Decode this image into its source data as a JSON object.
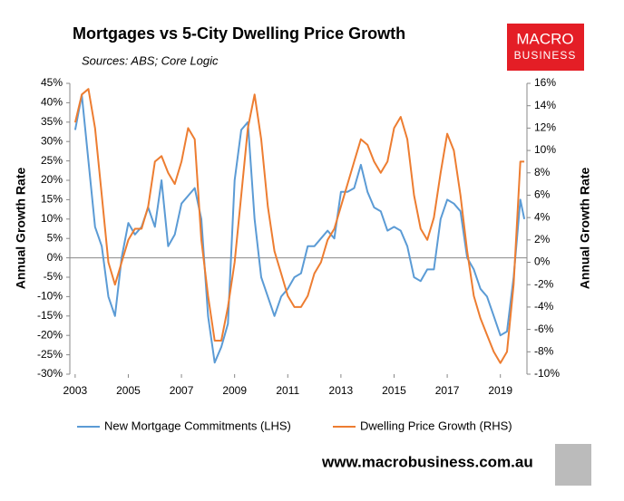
{
  "chart_data": {
    "type": "line",
    "title": "Mortgages vs 5-City Dwelling Price Growth",
    "subtitle": "Sources: ABS; Core Logic",
    "logo": [
      "MACRO",
      "BUSINESS"
    ],
    "footer": "www.macrobusiness.com.au",
    "y_label": "Annual Growth Rate",
    "y2_label": "Annual Growth Rate",
    "x": [
      2003.0,
      2003.25,
      2003.5,
      2003.75,
      2004.0,
      2004.25,
      2004.5,
      2004.75,
      2005.0,
      2005.25,
      2005.5,
      2005.75,
      2006.0,
      2006.25,
      2006.5,
      2006.75,
      2007.0,
      2007.25,
      2007.5,
      2007.75,
      2008.0,
      2008.25,
      2008.5,
      2008.75,
      2009.0,
      2009.25,
      2009.5,
      2009.75,
      2010.0,
      2010.25,
      2010.5,
      2010.75,
      2011.0,
      2011.25,
      2011.5,
      2011.75,
      2012.0,
      2012.25,
      2012.5,
      2012.75,
      2013.0,
      2013.25,
      2013.5,
      2013.75,
      2014.0,
      2014.25,
      2014.5,
      2014.75,
      2015.0,
      2015.25,
      2015.5,
      2015.75,
      2016.0,
      2016.25,
      2016.5,
      2016.75,
      2017.0,
      2017.25,
      2017.5,
      2017.75,
      2018.0,
      2018.25,
      2018.5,
      2018.75,
      2019.0,
      2019.25,
      2019.5,
      2019.75,
      2019.9
    ],
    "series": [
      {
        "name": "New Mortgage Commitments (LHS)",
        "color": "#5b9bd5",
        "axis": "y",
        "values": [
          33,
          42,
          25,
          8,
          3,
          -10,
          -15,
          0,
          9,
          6,
          8,
          13,
          8,
          20,
          3,
          6,
          14,
          16,
          18,
          10,
          -15,
          -27,
          -23,
          -17,
          20,
          33,
          35,
          10,
          -5,
          -10,
          -15,
          -10,
          -8,
          -5,
          -4,
          3,
          3,
          5,
          7,
          5,
          17,
          17,
          18,
          24,
          17,
          13,
          12,
          7,
          8,
          7,
          3,
          -5,
          -6,
          -3,
          -3,
          10,
          15,
          14,
          12,
          0,
          -3,
          -8,
          -10,
          -15,
          -20,
          -19,
          -5,
          15,
          10
        ]
      },
      {
        "name": "Dwelling Price Growth (RHS)",
        "color": "#ed7d31",
        "axis": "y2",
        "values": [
          12.5,
          15,
          15.5,
          12,
          6,
          0,
          -2,
          0,
          2,
          3,
          3,
          5,
          9,
          9.5,
          8,
          7,
          9,
          12,
          11,
          2,
          -3,
          -7,
          -7,
          -4,
          0,
          6,
          12,
          15,
          11,
          5,
          1,
          -1,
          -3,
          -4,
          -4,
          -3,
          -1,
          0,
          2,
          3,
          5,
          7,
          9,
          11,
          10.5,
          9,
          8,
          9,
          12,
          13,
          11,
          6,
          3,
          2,
          4,
          8,
          11.5,
          10,
          6,
          1,
          -3,
          -5,
          -6.5,
          -8,
          -9,
          -8,
          -2,
          9,
          9
        ]
      }
    ],
    "xlim": [
      2002.8,
      2020.0
    ],
    "xticks": [
      2003,
      2005,
      2007,
      2009,
      2011,
      2013,
      2015,
      2017,
      2019
    ],
    "ylim": [
      -30,
      45
    ],
    "yticks": [
      {
        "value": 45,
        "label": "45%"
      },
      {
        "value": 40,
        "label": "40%"
      },
      {
        "value": 35,
        "label": "35%"
      },
      {
        "value": 30,
        "label": "30%"
      },
      {
        "value": 25,
        "label": "25%"
      },
      {
        "value": 20,
        "label": "20%"
      },
      {
        "value": 15,
        "label": "15%"
      },
      {
        "value": 10,
        "label": "10%"
      },
      {
        "value": 5,
        "label": "5%"
      },
      {
        "value": 0,
        "label": "0%"
      },
      {
        "value": -5,
        "label": "-5%"
      },
      {
        "value": -10,
        "label": "-10%"
      },
      {
        "value": -15,
        "label": "-15%"
      },
      {
        "value": -20,
        "label": "-20%"
      },
      {
        "value": -25,
        "label": "-25%"
      },
      {
        "value": -30,
        "label": "-30%"
      }
    ],
    "y2lim": [
      -10,
      16
    ],
    "y2ticks": [
      {
        "value": 16,
        "label": "16%"
      },
      {
        "value": 14,
        "label": "14%"
      },
      {
        "value": 12,
        "label": "12%"
      },
      {
        "value": 10,
        "label": "10%"
      },
      {
        "value": 8,
        "label": "8%"
      },
      {
        "value": 6,
        "label": "6%"
      },
      {
        "value": 4,
        "label": "4%"
      },
      {
        "value": 2,
        "label": "2%"
      },
      {
        "value": 0,
        "label": "0%"
      },
      {
        "value": -2,
        "label": "-2%"
      },
      {
        "value": -4,
        "label": "-4%"
      },
      {
        "value": -6,
        "label": "-6%"
      },
      {
        "value": -8,
        "label": "-8%"
      },
      {
        "value": -10,
        "label": "-10%"
      }
    ],
    "grid": false
  }
}
